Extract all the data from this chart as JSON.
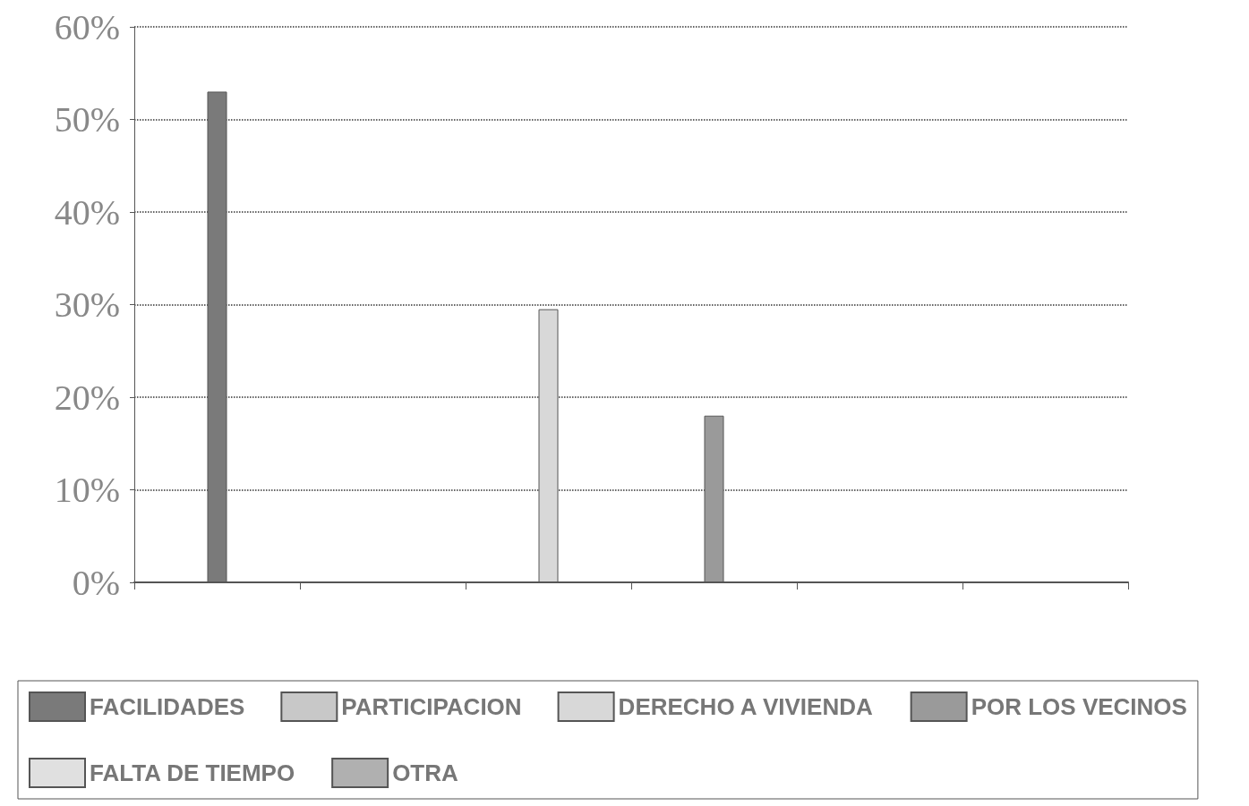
{
  "chart_data": {
    "type": "bar",
    "categories": [
      null,
      null,
      null,
      null,
      null,
      null
    ],
    "series": [
      {
        "name": "FACILIDADES",
        "color": "#7a7a7a",
        "values": [
          53,
          null,
          null,
          null,
          null,
          null
        ]
      },
      {
        "name": "PARTICIPACION",
        "color": "#c8c8c8",
        "values": [
          null,
          null,
          null,
          null,
          null,
          null
        ]
      },
      {
        "name": "DERECHO A VIVIENDA",
        "color": "#d8d8d8",
        "values": [
          null,
          null,
          29.5,
          null,
          null,
          null
        ]
      },
      {
        "name": "POR LOS VECINOS",
        "color": "#9a9a9a",
        "values": [
          null,
          null,
          null,
          18,
          null,
          null
        ]
      },
      {
        "name": "FALTA DE TIEMPO",
        "color": "#e0e0e0",
        "values": [
          null,
          null,
          null,
          null,
          null,
          null
        ]
      },
      {
        "name": "OTRA",
        "color": "#b0b0b0",
        "values": [
          null,
          null,
          null,
          null,
          null,
          null
        ]
      }
    ],
    "ylim": [
      0,
      60
    ],
    "yticks": [
      {
        "value": 0,
        "label": "0%"
      },
      {
        "value": 10,
        "label": "10%"
      },
      {
        "value": 20,
        "label": "20%"
      },
      {
        "value": 30,
        "label": "30%"
      },
      {
        "value": 40,
        "label": "40%"
      },
      {
        "value": 50,
        "label": "50%"
      },
      {
        "value": 60,
        "label": "60%"
      }
    ],
    "grid": "y",
    "legend": "bottom"
  }
}
